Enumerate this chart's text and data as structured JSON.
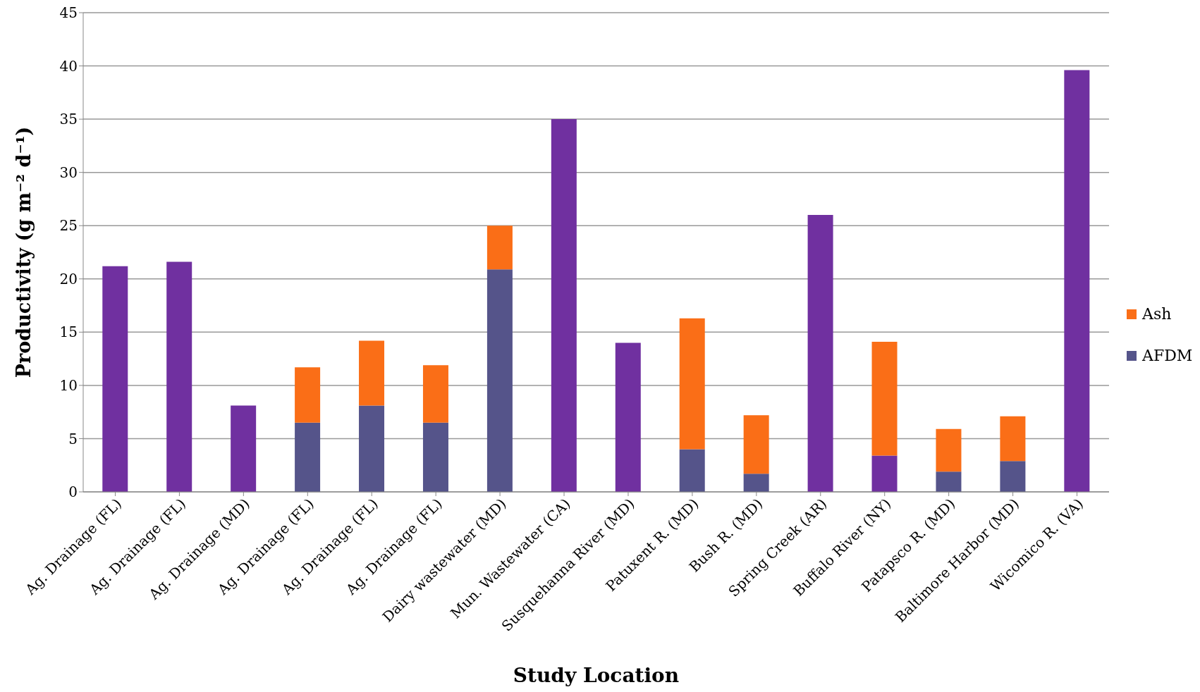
{
  "chart_data": {
    "type": "bar",
    "stacked": true,
    "xlabel": "Study Location",
    "ylabel": "Productivity (g m⁻² d⁻¹)",
    "categories": [
      "Ag. Drainage (FL)",
      "Ag. Drainage (FL)",
      "Ag. Drainage (MD)",
      "Ag. Drainage (FL)",
      "Ag. Drainage (FL)",
      "Ag. Drainage (FL)",
      "Dairy wastewater (MD)",
      "Mun. Wastewater (CA)",
      "Susquehanna River (MD)",
      "Patuxent R. (MD)",
      "Bush R. (MD)",
      "Spring Creek (AR)",
      "Buffalo River (NY)",
      "Patapsco R. (MD)",
      "Baltimore Harbor (MD)",
      "Wicomico R. (VA)"
    ],
    "series": [
      {
        "name": "AFDM",
        "color": "#55548a",
        "values": [
          null,
          null,
          null,
          6.5,
          8.1,
          6.5,
          20.9,
          null,
          null,
          4.0,
          1.7,
          null,
          null,
          1.9,
          2.9,
          null
        ]
      },
      {
        "color": "#7030a0",
        "values": [
          21.2,
          21.6,
          8.1,
          null,
          null,
          null,
          null,
          35.0,
          14.0,
          null,
          null,
          26.0,
          3.4,
          null,
          null,
          39.6
        ]
      },
      {
        "name": "Ash",
        "color": "#fa6e17",
        "values": [
          null,
          null,
          null,
          5.2,
          6.1,
          5.4,
          4.1,
          null,
          null,
          12.3,
          5.5,
          null,
          10.7,
          4.0,
          4.2,
          null
        ]
      }
    ],
    "ylim": [
      0,
      45
    ],
    "yticks": [
      0,
      5,
      10,
      15,
      20,
      25,
      30,
      35,
      40,
      45
    ],
    "grid": "y",
    "legend": "right"
  }
}
